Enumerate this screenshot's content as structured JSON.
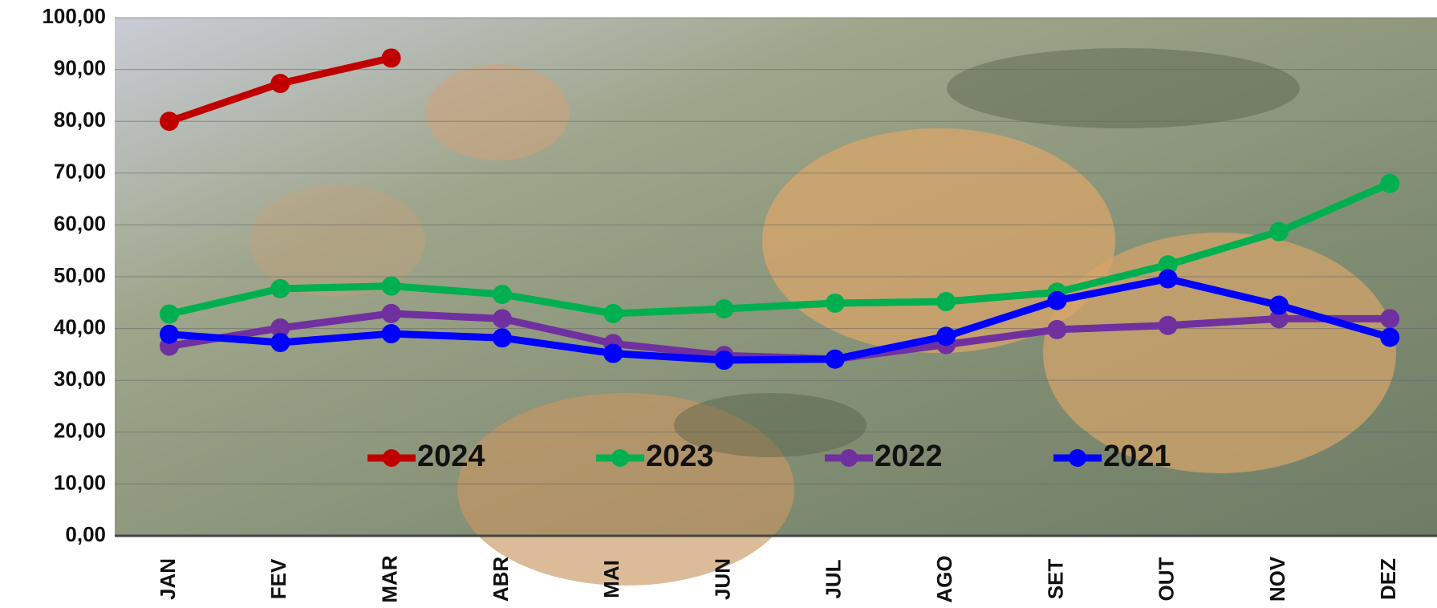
{
  "chart_data": {
    "type": "line",
    "categories": [
      "JAN",
      "FEV",
      "MAR",
      "ABR",
      "MAI",
      "JUN",
      "JUL",
      "AGO",
      "SET",
      "OUT",
      "NOV",
      "DEZ"
    ],
    "series": [
      {
        "name": "2024",
        "color": "#c00000",
        "values": [
          80.0,
          87.3,
          92.2,
          null,
          null,
          null,
          null,
          null,
          null,
          null,
          null,
          null
        ]
      },
      {
        "name": "2023",
        "color": "#00b050",
        "values": [
          42.8,
          47.7,
          48.2,
          46.6,
          42.9,
          43.8,
          44.9,
          45.2,
          47.0,
          52.3,
          58.7,
          68.0
        ]
      },
      {
        "name": "2022",
        "color": "#7030a0",
        "values": [
          36.6,
          40.1,
          42.9,
          41.9,
          37.1,
          34.8,
          34.1,
          36.9,
          39.8,
          40.6,
          41.9,
          41.9
        ]
      },
      {
        "name": "2021",
        "color": "#0000ff",
        "values": [
          38.9,
          37.3,
          39.0,
          38.2,
          35.2,
          33.9,
          34.1,
          38.5,
          45.4,
          49.6,
          44.5,
          38.3
        ]
      }
    ],
    "ylim": [
      0,
      100
    ],
    "yticks": [
      {
        "value": 0,
        "label": "0,00"
      },
      {
        "value": 10,
        "label": "10,00"
      },
      {
        "value": 20,
        "label": "20,00"
      },
      {
        "value": 30,
        "label": "30,00"
      },
      {
        "value": 40,
        "label": "40,00"
      },
      {
        "value": 50,
        "label": "50,00"
      },
      {
        "value": 60,
        "label": "60,00"
      },
      {
        "value": 70,
        "label": "70,00"
      },
      {
        "value": 80,
        "label": "80,00"
      },
      {
        "value": 90,
        "label": "90,00"
      },
      {
        "value": 100,
        "label": "100,00"
      }
    ],
    "grid": true
  }
}
